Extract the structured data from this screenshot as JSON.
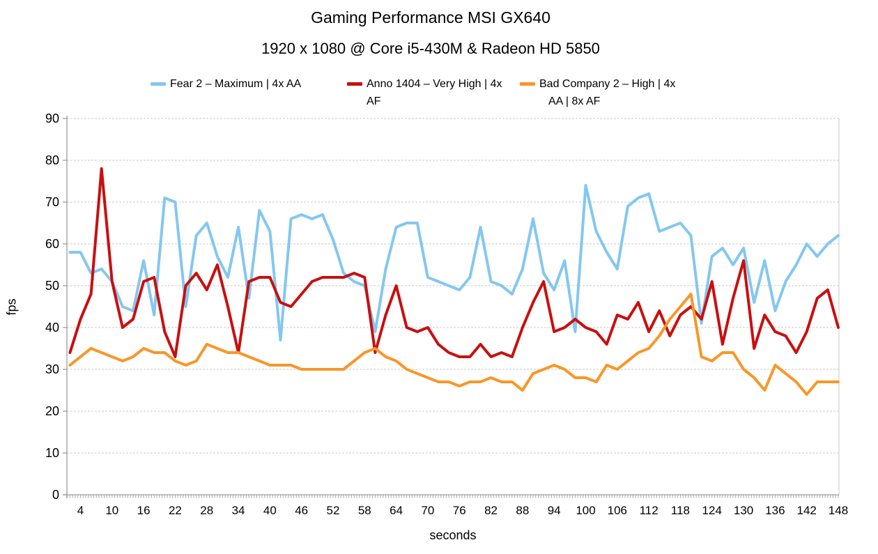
{
  "header": {
    "title": "Gaming Performance MSI GX640",
    "subtitle": "1920 x 1080 @ Core i5-430M & Radeon HD 5850"
  },
  "legend": {
    "items": [
      {
        "line1": "Fear 2 – Maximum | 4x AA",
        "line2": ""
      },
      {
        "line1": "Anno 1404 – Very High | 4x",
        "line2": "AF"
      },
      {
        "line1": "Bad Company 2 – High | 4x",
        "line2": "AA | 8x AF"
      }
    ]
  },
  "chart_data": {
    "type": "line",
    "title": "Gaming Performance MSI GX640",
    "subtitle": "1920 x 1080 @ Core i5-430M & Radeon HD 5850",
    "xlabel": "seconds",
    "ylabel": "fps",
    "ylim": [
      0,
      90
    ],
    "yticks": [
      0,
      10,
      20,
      30,
      40,
      50,
      60,
      70,
      80,
      90
    ],
    "xticks": [
      4,
      10,
      16,
      22,
      28,
      34,
      40,
      46,
      52,
      58,
      64,
      70,
      76,
      82,
      88,
      94,
      100,
      106,
      112,
      118,
      124,
      130,
      136,
      142,
      148
    ],
    "grid": "horizontal-dashed",
    "legend_position": "top",
    "grid_color": "#C9C9C9",
    "axis_color": "#9B9B9B",
    "tick_color": "#A8A8A8",
    "x": [
      2,
      4,
      6,
      8,
      10,
      12,
      14,
      16,
      18,
      20,
      22,
      24,
      26,
      28,
      30,
      32,
      34,
      36,
      38,
      40,
      42,
      44,
      46,
      48,
      50,
      52,
      54,
      56,
      58,
      60,
      62,
      64,
      66,
      68,
      70,
      72,
      74,
      76,
      78,
      80,
      82,
      84,
      86,
      88,
      90,
      92,
      94,
      96,
      98,
      100,
      102,
      104,
      106,
      108,
      110,
      112,
      114,
      116,
      118,
      120,
      122,
      124,
      126,
      128,
      130,
      132,
      134,
      136,
      138,
      140,
      142,
      144,
      146,
      148
    ],
    "series": [
      {
        "name": "Fear 2 – Maximum | 4x AA",
        "color": "#84C7F0",
        "values": [
          58,
          58,
          53,
          54,
          51,
          45,
          44,
          56,
          43,
          71,
          70,
          45,
          62,
          65,
          57,
          52,
          64,
          47,
          68,
          63,
          37,
          66,
          67,
          66,
          67,
          61,
          53,
          51,
          50,
          39,
          54,
          64,
          65,
          65,
          52,
          51,
          50,
          49,
          52,
          64,
          51,
          50,
          48,
          54,
          66,
          53,
          49,
          56,
          39,
          74,
          63,
          58,
          54,
          69,
          71,
          72,
          63,
          64,
          65,
          62,
          41,
          57,
          59,
          55,
          59,
          46,
          56,
          44,
          51,
          55,
          60,
          57,
          60,
          62
        ]
      },
      {
        "name": "Anno 1404 – Very High | 4x AF",
        "color": "#C90F0F",
        "values": [
          34,
          42,
          48,
          78,
          51,
          40,
          42,
          51,
          52,
          39,
          33,
          50,
          53,
          49,
          55,
          45,
          34,
          51,
          52,
          52,
          46,
          45,
          48,
          51,
          52,
          52,
          52,
          53,
          52,
          34,
          43,
          50,
          40,
          39,
          40,
          36,
          34,
          33,
          33,
          36,
          33,
          34,
          33,
          40,
          46,
          51,
          39,
          40,
          42,
          40,
          39,
          36,
          43,
          42,
          46,
          39,
          44,
          38,
          43,
          45,
          42,
          51,
          36,
          47,
          56,
          35,
          43,
          39,
          38,
          34,
          39,
          47,
          49,
          40
        ]
      },
      {
        "name": "Bad Company 2 – High | 4x AA | 8x AF",
        "color": "#F89728",
        "values": [
          31,
          33,
          35,
          34,
          33,
          32,
          33,
          35,
          34,
          34,
          32,
          31,
          32,
          36,
          35,
          34,
          34,
          33,
          32,
          31,
          31,
          31,
          30,
          30,
          30,
          30,
          30,
          32,
          34,
          35,
          33,
          32,
          30,
          29,
          28,
          27,
          27,
          26,
          27,
          27,
          28,
          27,
          27,
          25,
          29,
          30,
          31,
          30,
          28,
          28,
          27,
          31,
          30,
          32,
          34,
          35,
          38,
          42,
          45,
          48,
          33,
          32,
          34,
          34,
          30,
          28,
          25,
          31,
          29,
          27,
          24,
          27,
          27,
          27
        ]
      }
    ]
  }
}
